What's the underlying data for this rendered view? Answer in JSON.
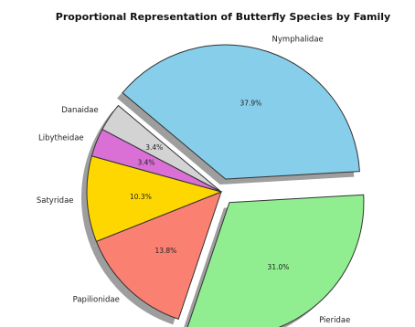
{
  "chart_data": {
    "type": "pie",
    "title": "Proportional Representation of Butterfly Species by Family",
    "start_angle_deg": 140,
    "direction": "clockwise",
    "shadow": true,
    "slices": [
      {
        "label": "Nymphalidae",
        "value": 37.9,
        "pct_label": "37.9%",
        "color": "#87CEEB",
        "explode": 0.1
      },
      {
        "label": "Pieridae",
        "value": 31.0,
        "pct_label": "31.0%",
        "color": "#90EE90",
        "explode": 0.1
      },
      {
        "label": "Papilionidae",
        "value": 13.8,
        "pct_label": "13.8%",
        "color": "#FA8072",
        "explode": 0
      },
      {
        "label": "Satyridae",
        "value": 10.3,
        "pct_label": "10.3%",
        "color": "#FFD700",
        "explode": 0
      },
      {
        "label": "Libytheidae",
        "value": 3.4,
        "pct_label": "3.4%",
        "color": "#DA70D6",
        "explode": 0
      },
      {
        "label": "Danaidae",
        "value": 3.4,
        "pct_label": "3.4%",
        "color": "#D3D3D3",
        "explode": 0
      }
    ]
  }
}
